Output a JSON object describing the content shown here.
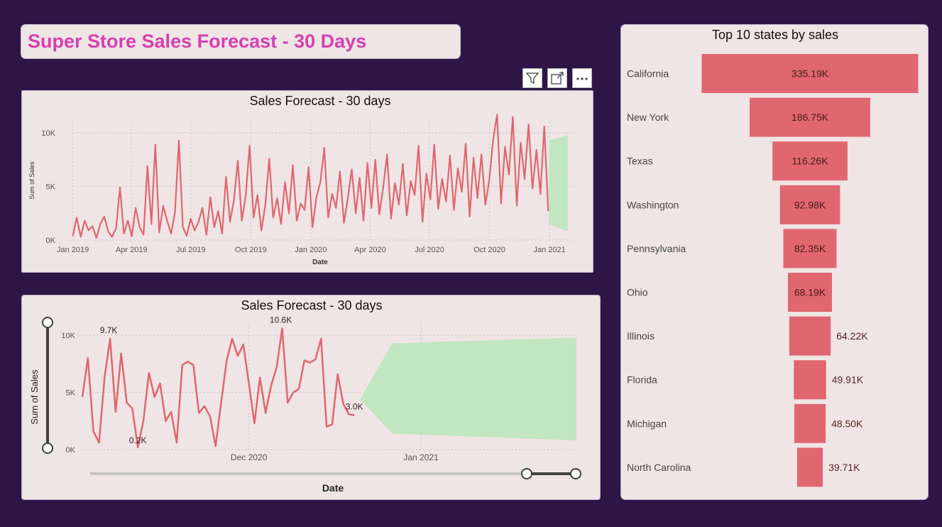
{
  "header": {
    "title": "Super Store Sales Forecast - 30 Days"
  },
  "toolbar": {
    "icons": [
      "filter-icon",
      "focus-mode-icon",
      "more-options-icon"
    ]
  },
  "colors": {
    "background": "#2d1646",
    "card": "#efe5e5",
    "line": "#e06670",
    "forecast": "#c2e6c0",
    "title": "#d63fb1",
    "bar": "#e06670"
  },
  "chart_data": [
    {
      "type": "line",
      "title": "Sales Forecast - 30 days",
      "xlabel": "Date",
      "ylabel": "Sum of Sales",
      "x_ticks": [
        "Jan 2019",
        "Apr 2019",
        "Jul 2019",
        "Oct 2019",
        "Jan 2020",
        "Apr 2020",
        "Jul 2020",
        "Oct 2020",
        "Jan 2021"
      ],
      "y_ticks": [
        "0K",
        "5K",
        "10K"
      ],
      "ylim": [
        0,
        11000
      ],
      "series": [
        {
          "values_note_free": true,
          "x_range": [
            "2019-01-01",
            "2020-12-30"
          ],
          "values": [
            400,
            2100,
            300,
            1800,
            900,
            1300,
            200,
            1500,
            2200,
            800,
            300,
            1100,
            4900,
            600,
            1800,
            350,
            3000,
            1200,
            500,
            6900,
            1500,
            8900,
            700,
            3200,
            1800,
            600,
            2600,
            9300,
            1200,
            400,
            2000,
            900,
            1700,
            3000,
            500,
            4000,
            1200,
            2700,
            600,
            5900,
            1700,
            3700,
            7400,
            1800,
            4100,
            8800,
            2100,
            4200,
            900,
            3300,
            7600,
            2100,
            3900,
            1500,
            5400,
            2500,
            7000,
            1800,
            3400,
            2800,
            6800,
            1200,
            4000,
            5400,
            8600,
            2100,
            4300,
            3000,
            6400,
            1600,
            3900,
            6600,
            2500,
            5800,
            1800,
            7200,
            3000,
            7500,
            2400,
            4900,
            8000,
            2000,
            5300,
            3300,
            7100,
            2300,
            5500,
            4200,
            8800,
            1700,
            6200,
            3800,
            8900,
            2900,
            5700,
            3600,
            7900,
            2800,
            6700,
            4500,
            9000,
            2200,
            7700,
            3900,
            8000,
            3300,
            5600,
            9400,
            11700,
            3400,
            8700,
            6100,
            11500,
            3200,
            9100,
            5700,
            10800,
            4800,
            8400,
            4300,
            10600,
            2700
          ]
        },
        {
          "name": "",
          "kind": "forecast-band",
          "x_range": [
            "2020-12-31",
            "2021-01-29"
          ],
          "lower_start": 1500,
          "lower_end": 800,
          "upper_start": 9300,
          "upper_end": 9800
        }
      ]
    },
    {
      "type": "line",
      "title": "Sales Forecast - 30 days",
      "xlabel": "Date",
      "ylabel": "Sum of Sales",
      "x_ticks": [
        "Dec 2020",
        "Jan 2021"
      ],
      "y_ticks": [
        "0K",
        "5K",
        "10K"
      ],
      "ylim": [
        0,
        11000
      ],
      "x_range": [
        "2020-11-01",
        "2021-01-29"
      ],
      "series": [
        {
          "x_start": "2020-11-01",
          "values": [
            4600,
            8000,
            1600,
            600,
            6300,
            9700,
            3300,
            8400,
            4100,
            3600,
            200,
            2500,
            6700,
            4600,
            5800,
            2500,
            3300,
            600,
            7400,
            7700,
            7400,
            3200,
            3800,
            2900,
            300,
            4100,
            7800,
            9700,
            8200,
            9200,
            5800,
            2300,
            6300,
            3200,
            5600,
            7200,
            10600,
            4100,
            5000,
            5300,
            7800,
            7600,
            7900,
            9700,
            2000,
            2200,
            6600,
            4000,
            3100,
            3000
          ],
          "data_labels": [
            {
              "index": 5,
              "text": "9.7K"
            },
            {
              "index": 10,
              "text": "0.2K"
            },
            {
              "index": 36,
              "text": "10.6K"
            },
            {
              "index": 49,
              "text": "3.0K"
            }
          ]
        },
        {
          "name": "",
          "kind": "forecast-band",
          "x_range": [
            "2020-12-21",
            "2021-01-29"
          ],
          "lower_start": 4400,
          "lower_mid": 1400,
          "lower_end": 800,
          "upper_start": 4400,
          "upper_mid": 9300,
          "upper_end": 9800
        }
      ]
    },
    {
      "type": "bar",
      "title": "Top 10 states by sales",
      "categories": [
        "California",
        "New York",
        "Texas",
        "Washington",
        "Pennsylvania",
        "Ohio",
        "Illinois",
        "Florida",
        "Michigan",
        "North Carolina"
      ],
      "values": [
        335.19,
        186.75,
        116.26,
        92.98,
        82.35,
        68.19,
        64.22,
        49.91,
        48.5,
        39.71
      ],
      "labels": [
        "335.19K",
        "186.75K",
        "116.26K",
        "92.98K",
        "82.35K",
        "68.19K",
        "64.22K",
        "49.91K",
        "48.50K",
        "39.71K"
      ]
    }
  ]
}
